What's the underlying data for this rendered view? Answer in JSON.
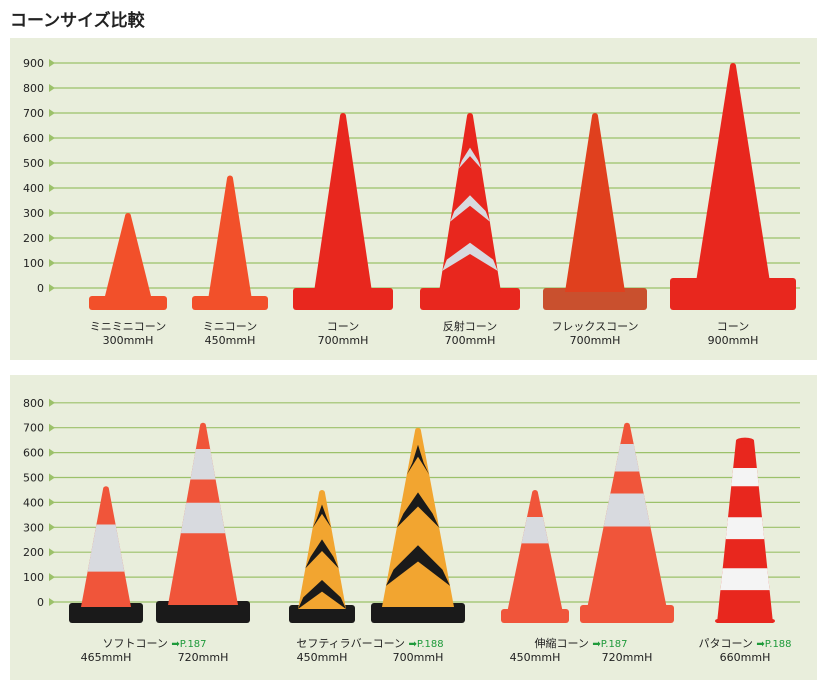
{
  "title": "コーンサイズ比較",
  "colors": {
    "panel_bg": "#e9eedc",
    "grid": "#9cc16a",
    "cone_red": "#e8271e",
    "cone_orange": "#f2502a",
    "reflective": "#d8dadf",
    "black": "#1a1a1a",
    "yellow": "#f2a530",
    "link_green": "#1e9a3a"
  },
  "chart_data": [
    {
      "type": "bar",
      "unit": "mmH",
      "ylim": [
        0,
        900
      ],
      "yticks": [
        "900",
        "800",
        "700",
        "600",
        "500",
        "400",
        "300",
        "200",
        "100",
        "0"
      ],
      "grid": true,
      "items": [
        {
          "name": "ミニミニコーン",
          "height": 300,
          "label": "300mmH"
        },
        {
          "name": "ミニコーン",
          "height": 450,
          "label": "450mmH"
        },
        {
          "name": "コーン",
          "height": 700,
          "label": "700mmH"
        },
        {
          "name": "反射コーン",
          "height": 700,
          "label": "700mmH"
        },
        {
          "name": "フレックスコーン",
          "height": 700,
          "label": "700mmH"
        },
        {
          "name": "コーン",
          "height": 900,
          "label": "900mmH"
        }
      ]
    },
    {
      "type": "bar",
      "unit": "mmH",
      "ylim": [
        0,
        800
      ],
      "yticks": [
        "800",
        "700",
        "600",
        "500",
        "400",
        "300",
        "200",
        "100",
        "0"
      ],
      "grid": true,
      "groups": [
        {
          "name": "ソフトコーン",
          "ref": "➡P.187",
          "items": [
            {
              "height": 465,
              "label": "465mmH"
            },
            {
              "height": 720,
              "label": "720mmH"
            }
          ]
        },
        {
          "name": "セフティラバーコーン",
          "ref": "➡P.188",
          "items": [
            {
              "height": 450,
              "label": "450mmH"
            },
            {
              "height": 700,
              "label": "700mmH"
            }
          ]
        },
        {
          "name": "伸縮コーン",
          "ref": "➡P.187",
          "items": [
            {
              "height": 450,
              "label": "450mmH"
            },
            {
              "height": 720,
              "label": "720mmH"
            }
          ]
        },
        {
          "name": "パタコーン",
          "ref": "➡P.188",
          "items": [
            {
              "height": 660,
              "label": "660mmH"
            }
          ]
        }
      ]
    }
  ]
}
